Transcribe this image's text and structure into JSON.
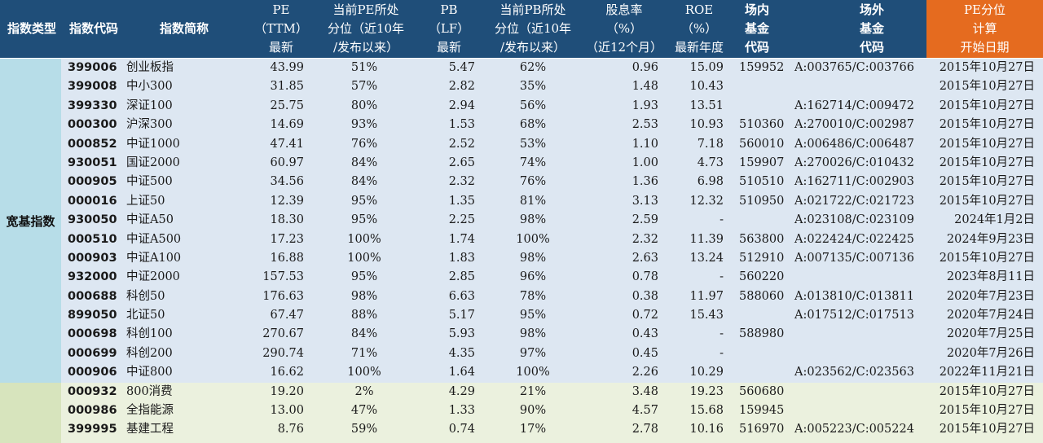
{
  "colors": {
    "header_bg": "#1f4e79",
    "header_highlight": "#e56b1f",
    "group1_label_bg": "#b7dde8",
    "group1_row_bg": "#dde7f2",
    "group2_label_bg": "#d7e4bd",
    "group2_row_bg": "#ebf1de"
  },
  "headers": {
    "type": [
      "指数类型"
    ],
    "code": [
      "指数代码"
    ],
    "name": [
      "指数简称"
    ],
    "pe": [
      "PE",
      "（TTM）",
      "最新"
    ],
    "pe_pct": [
      "当前PE所处",
      "分位（近10年",
      "/发布以来）"
    ],
    "pb": [
      "PB",
      "（LF）",
      "最新"
    ],
    "pb_pct": [
      "当前PB所处",
      "分位（近10年",
      "/发布以来）"
    ],
    "div": [
      "股息率",
      "（%）",
      "（近12个月）"
    ],
    "roe": [
      "ROE",
      "（%）",
      "最新年度"
    ],
    "fund_in": [
      "场内",
      "基金",
      "代码"
    ],
    "fund_out": [
      "场外",
      "基金",
      "代码"
    ],
    "start": [
      "PE分位",
      "计算",
      "开始日期"
    ]
  },
  "groups": [
    {
      "label": "宽基指数",
      "rows": [
        {
          "code": "399006",
          "name": "创业板指",
          "pe": "43.99",
          "pe_pct": "51%",
          "pb": "5.47",
          "pb_pct": "62%",
          "div": "0.96",
          "roe": "15.09",
          "fund_in": "159952",
          "fund_out": "A:003765/C:003766",
          "start": "2015年10月27日"
        },
        {
          "code": "399008",
          "name": "中小300",
          "pe": "31.85",
          "pe_pct": "57%",
          "pb": "2.82",
          "pb_pct": "35%",
          "div": "1.48",
          "roe": "10.43",
          "fund_in": "",
          "fund_out": "",
          "start": "2015年10月27日"
        },
        {
          "code": "399330",
          "name": "深证100",
          "pe": "25.75",
          "pe_pct": "80%",
          "pb": "2.94",
          "pb_pct": "56%",
          "div": "1.93",
          "roe": "13.51",
          "fund_in": "",
          "fund_out": "A:162714/C:009472",
          "start": "2015年10月27日"
        },
        {
          "code": "000300",
          "name": "沪深300",
          "pe": "14.69",
          "pe_pct": "93%",
          "pb": "1.53",
          "pb_pct": "68%",
          "div": "2.53",
          "roe": "10.93",
          "fund_in": "510360",
          "fund_out": "A:270010/C:002987",
          "start": "2015年10月27日"
        },
        {
          "code": "000852",
          "name": "中证1000",
          "pe": "47.41",
          "pe_pct": "76%",
          "pb": "2.52",
          "pb_pct": "53%",
          "div": "1.10",
          "roe": "7.18",
          "fund_in": "560010",
          "fund_out": "A:006486/C:006487",
          "start": "2015年10月27日"
        },
        {
          "code": "930051",
          "name": "国证2000",
          "pe": "60.97",
          "pe_pct": "84%",
          "pb": "2.65",
          "pb_pct": "74%",
          "div": "1.00",
          "roe": "4.73",
          "fund_in": "159907",
          "fund_out": "A:270026/C:010432",
          "start": "2015年10月27日"
        },
        {
          "code": "000905",
          "name": "中证500",
          "pe": "34.56",
          "pe_pct": "84%",
          "pb": "2.32",
          "pb_pct": "76%",
          "div": "1.36",
          "roe": "6.98",
          "fund_in": "510510",
          "fund_out": "A:162711/C:002903",
          "start": "2015年10月27日"
        },
        {
          "code": "000016",
          "name": "上证50",
          "pe": "12.39",
          "pe_pct": "95%",
          "pb": "1.35",
          "pb_pct": "81%",
          "div": "3.13",
          "roe": "12.32",
          "fund_in": "510950",
          "fund_out": "A:021722/C:021723",
          "start": "2015年10月27日"
        },
        {
          "code": "930050",
          "name": "中证A50",
          "pe": "18.30",
          "pe_pct": "95%",
          "pb": "2.25",
          "pb_pct": "98%",
          "div": "2.59",
          "roe": "-",
          "fund_in": "",
          "fund_out": "A:023108/C:023109",
          "start": "2024年1月2日"
        },
        {
          "code": "000510",
          "name": "中证A500",
          "pe": "17.23",
          "pe_pct": "100%",
          "pb": "1.74",
          "pb_pct": "100%",
          "div": "2.32",
          "roe": "11.39",
          "fund_in": "563800",
          "fund_out": "A:022424/C:022425",
          "start": "2024年9月23日"
        },
        {
          "code": "000903",
          "name": "中证A100",
          "pe": "16.88",
          "pe_pct": "100%",
          "pb": "1.83",
          "pb_pct": "98%",
          "div": "2.63",
          "roe": "13.24",
          "fund_in": "512910",
          "fund_out": "A:007135/C:007136",
          "start": "2015年10月27日"
        },
        {
          "code": "932000",
          "name": "中证2000",
          "pe": "157.53",
          "pe_pct": "95%",
          "pb": "2.85",
          "pb_pct": "96%",
          "div": "0.78",
          "roe": "-",
          "fund_in": "560220",
          "fund_out": "",
          "start": "2023年8月11日"
        },
        {
          "code": "000688",
          "name": "科创50",
          "pe": "176.63",
          "pe_pct": "98%",
          "pb": "6.63",
          "pb_pct": "78%",
          "div": "0.38",
          "roe": "11.97",
          "fund_in": "588060",
          "fund_out": "A:013810/C:013811",
          "start": "2020年7月23日"
        },
        {
          "code": "899050",
          "name": "北证50",
          "pe": "67.47",
          "pe_pct": "88%",
          "pb": "5.17",
          "pb_pct": "95%",
          "div": "0.72",
          "roe": "15.43",
          "fund_in": "",
          "fund_out": "A:017512/C:017513",
          "start": "2020年7月24日"
        },
        {
          "code": "000698",
          "name": "科创100",
          "pe": "270.67",
          "pe_pct": "84%",
          "pb": "5.93",
          "pb_pct": "98%",
          "div": "0.43",
          "roe": "-",
          "fund_in": "588980",
          "fund_out": "",
          "start": "2020年7月25日"
        },
        {
          "code": "000699",
          "name": "科创200",
          "pe": "290.74",
          "pe_pct": "71%",
          "pb": "4.35",
          "pb_pct": "97%",
          "div": "0.45",
          "roe": "-",
          "fund_in": "",
          "fund_out": "",
          "start": "2020年7月26日"
        },
        {
          "code": "000906",
          "name": "中证800",
          "pe": "16.62",
          "pe_pct": "100%",
          "pb": "1.64",
          "pb_pct": "100%",
          "div": "2.26",
          "roe": "10.29",
          "fund_in": "",
          "fund_out": "A:023562/C:023563",
          "start": "2022年11月21日"
        }
      ]
    },
    {
      "label": "",
      "rows": [
        {
          "code": "000932",
          "name": "800消费",
          "pe": "19.20",
          "pe_pct": "2%",
          "pb": "4.29",
          "pb_pct": "21%",
          "div": "3.48",
          "roe": "19.23",
          "fund_in": "560680",
          "fund_out": "",
          "start": "2015年10月27日"
        },
        {
          "code": "000986",
          "name": "全指能源",
          "pe": "13.00",
          "pe_pct": "47%",
          "pb": "1.33",
          "pb_pct": "90%",
          "div": "4.57",
          "roe": "15.68",
          "fund_in": "159945",
          "fund_out": "",
          "start": "2015年10月27日"
        },
        {
          "code": "399995",
          "name": "基建工程",
          "pe": "8.76",
          "pe_pct": "59%",
          "pb": "0.74",
          "pb_pct": "17%",
          "div": "2.78",
          "roe": "10.16",
          "fund_in": "516970",
          "fund_out": "A:005223/C:005224",
          "start": "2015年10月27日"
        }
      ]
    }
  ]
}
